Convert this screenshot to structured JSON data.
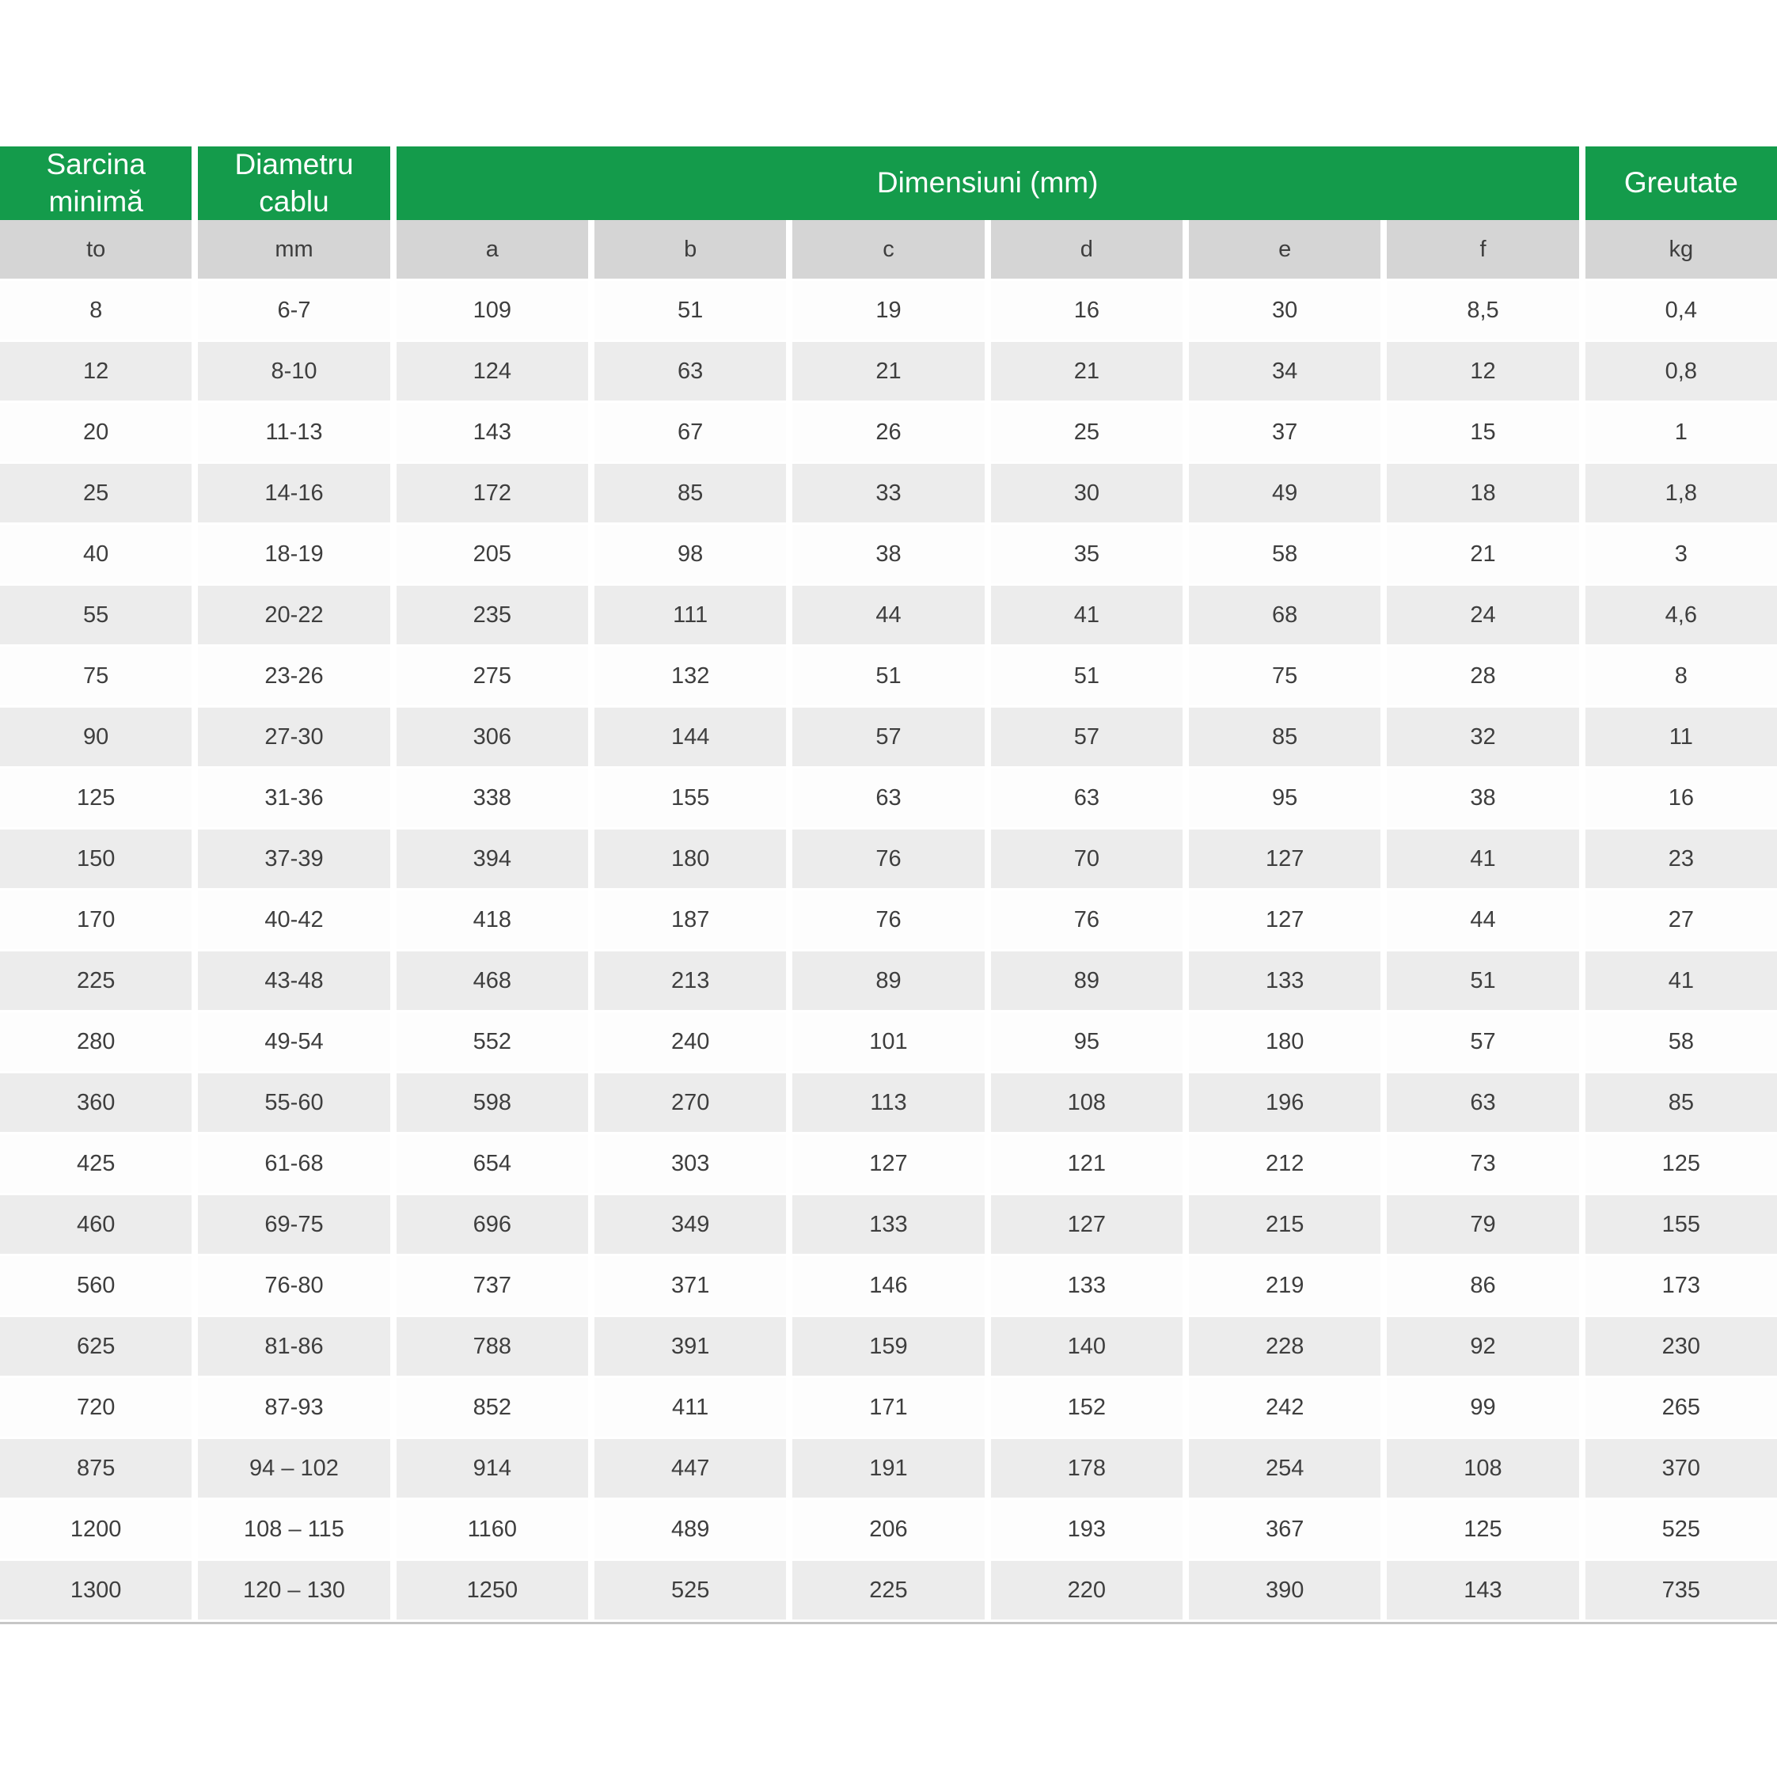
{
  "chart_data": {
    "type": "table",
    "header_groups": [
      {
        "label": "Sarcina minimă",
        "span": 1
      },
      {
        "label": "Diametru cablu",
        "span": 1
      },
      {
        "label": "Dimensiuni (mm)",
        "span": 6
      },
      {
        "label": "Greutate",
        "span": 1
      }
    ],
    "unit_row": [
      "to",
      "mm",
      "a",
      "b",
      "c",
      "d",
      "e",
      "f",
      "kg"
    ],
    "rows": [
      [
        "8",
        "6-7",
        "109",
        "51",
        "19",
        "16",
        "30",
        "8,5",
        "0,4"
      ],
      [
        "12",
        "8-10",
        "124",
        "63",
        "21",
        "21",
        "34",
        "12",
        "0,8"
      ],
      [
        "20",
        "11-13",
        "143",
        "67",
        "26",
        "25",
        "37",
        "15",
        "1"
      ],
      [
        "25",
        "14-16",
        "172",
        "85",
        "33",
        "30",
        "49",
        "18",
        "1,8"
      ],
      [
        "40",
        "18-19",
        "205",
        "98",
        "38",
        "35",
        "58",
        "21",
        "3"
      ],
      [
        "55",
        "20-22",
        "235",
        "111",
        "44",
        "41",
        "68",
        "24",
        "4,6"
      ],
      [
        "75",
        "23-26",
        "275",
        "132",
        "51",
        "51",
        "75",
        "28",
        "8"
      ],
      [
        "90",
        "27-30",
        "306",
        "144",
        "57",
        "57",
        "85",
        "32",
        "11"
      ],
      [
        "125",
        "31-36",
        "338",
        "155",
        "63",
        "63",
        "95",
        "38",
        "16"
      ],
      [
        "150",
        "37-39",
        "394",
        "180",
        "76",
        "70",
        "127",
        "41",
        "23"
      ],
      [
        "170",
        "40-42",
        "418",
        "187",
        "76",
        "76",
        "127",
        "44",
        "27"
      ],
      [
        "225",
        "43-48",
        "468",
        "213",
        "89",
        "89",
        "133",
        "51",
        "41"
      ],
      [
        "280",
        "49-54",
        "552",
        "240",
        "101",
        "95",
        "180",
        "57",
        "58"
      ],
      [
        "360",
        "55-60",
        "598",
        "270",
        "113",
        "108",
        "196",
        "63",
        "85"
      ],
      [
        "425",
        "61-68",
        "654",
        "303",
        "127",
        "121",
        "212",
        "73",
        "125"
      ],
      [
        "460",
        "69-75",
        "696",
        "349",
        "133",
        "127",
        "215",
        "79",
        "155"
      ],
      [
        "560",
        "76-80",
        "737",
        "371",
        "146",
        "133",
        "219",
        "86",
        "173"
      ],
      [
        "625",
        "81-86",
        "788",
        "391",
        "159",
        "140",
        "228",
        "92",
        "230"
      ],
      [
        "720",
        "87-93",
        "852",
        "411",
        "171",
        "152",
        "242",
        "99",
        "265"
      ],
      [
        "875",
        "94 – 102",
        "914",
        "447",
        "191",
        "178",
        "254",
        "108",
        "370"
      ],
      [
        "1200",
        "108 – 115",
        "1160",
        "489",
        "206",
        "193",
        "367",
        "125",
        "525"
      ],
      [
        "1300",
        "120 – 130",
        "1250",
        "525",
        "225",
        "220",
        "390",
        "143",
        "735"
      ]
    ]
  },
  "colors": {
    "header_green": "#149B4B",
    "header_text": "#FFFFFF",
    "subheader_gray": "#D5D5D5",
    "row_white": "#FDFDFD",
    "row_alt_gray": "#ECECEC",
    "text": "#3E3E3E",
    "bottom_border": "#C6C6C6"
  }
}
